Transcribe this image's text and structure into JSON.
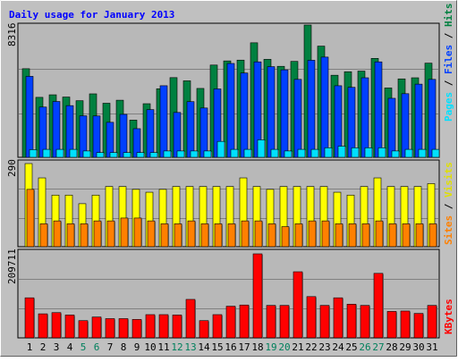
{
  "chart_data": [
    {
      "type": "bar",
      "title": "Daily usage for January 2013",
      "categories": [
        "1",
        "2",
        "3",
        "4",
        "5",
        "6",
        "7",
        "8",
        "9",
        "10",
        "11",
        "12",
        "13",
        "14",
        "15",
        "16",
        "17",
        "18",
        "19",
        "20",
        "21",
        "22",
        "23",
        "24",
        "25",
        "26",
        "27",
        "28",
        "29",
        "30",
        "31"
      ],
      "weekend_days": [
        "5",
        "6",
        "12",
        "13",
        "19",
        "20",
        "26",
        "27"
      ],
      "ymax_label": "8316",
      "ylim": [
        0,
        8316
      ],
      "legend": [
        "Pages",
        "Files",
        "Hits"
      ],
      "series": [
        {
          "name": "Hits",
          "color": "#008040",
          "values": [
            5570,
            3770,
            3930,
            3790,
            3560,
            3990,
            3400,
            3590,
            2340,
            3370,
            4310,
            5010,
            4810,
            4330,
            5800,
            6060,
            6110,
            7200,
            6160,
            5720,
            6030,
            8316,
            6990,
            5160,
            5380,
            5420,
            6220,
            4360,
            4930,
            5000,
            5920
          ]
        },
        {
          "name": "Files",
          "color": "#0040ff",
          "values": [
            5090,
            3160,
            3510,
            3250,
            2610,
            2600,
            2200,
            2700,
            1800,
            3000,
            4500,
            2820,
            3500,
            3100,
            4300,
            5900,
            5300,
            6000,
            5700,
            5500,
            4900,
            6100,
            6300,
            4500,
            4400,
            5000,
            6000,
            3710,
            4000,
            4600,
            4900
          ]
        },
        {
          "name": "Pages",
          "color": "#00e0ff",
          "values": [
            480,
            500,
            500,
            500,
            400,
            300,
            300,
            300,
            300,
            300,
            400,
            400,
            400,
            400,
            1000,
            500,
            500,
            1100,
            500,
            400,
            500,
            500,
            600,
            700,
            600,
            600,
            600,
            400,
            500,
            500,
            500
          ]
        }
      ]
    },
    {
      "type": "bar",
      "ymax_label": "290",
      "ylim": [
        0,
        290
      ],
      "legend": [
        "Sites",
        "Visits"
      ],
      "series": [
        {
          "name": "Visits",
          "color": "#ffff00",
          "values": [
            290,
            240,
            180,
            180,
            150,
            180,
            210,
            210,
            200,
            190,
            200,
            210,
            210,
            210,
            210,
            210,
            240,
            210,
            200,
            210,
            210,
            210,
            210,
            190,
            180,
            210,
            240,
            210,
            210,
            210,
            220
          ]
        },
        {
          "name": "Sites",
          "color": "#ff8000",
          "values": [
            200,
            80,
            90,
            80,
            80,
            90,
            90,
            100,
            100,
            90,
            80,
            80,
            90,
            80,
            80,
            80,
            90,
            90,
            80,
            70,
            80,
            90,
            90,
            80,
            80,
            80,
            90,
            80,
            80,
            80,
            80
          ]
        }
      ]
    },
    {
      "type": "bar",
      "ymax_label": "209711",
      "ylim": [
        0,
        209711
      ],
      "legend": [
        "KBytes"
      ],
      "series": [
        {
          "name": "KBytes",
          "color": "#ff0000",
          "values": [
            100000,
            60000,
            63000,
            57000,
            43000,
            52000,
            48000,
            48000,
            46000,
            58000,
            58000,
            57000,
            96000,
            43000,
            58000,
            79000,
            82000,
            209711,
            81000,
            81000,
            165000,
            103000,
            81000,
            100000,
            84000,
            81000,
            161000,
            66000,
            67000,
            61000,
            81000
          ]
        }
      ]
    }
  ],
  "colors": {
    "background": "#ffffff",
    "frame_bg": "#c0c0c0",
    "panel_bg": "#b8b8b8",
    "title": "#0000ff",
    "day_label": "#000000",
    "weekend_label": "#00805c",
    "shadow": "#808080"
  }
}
